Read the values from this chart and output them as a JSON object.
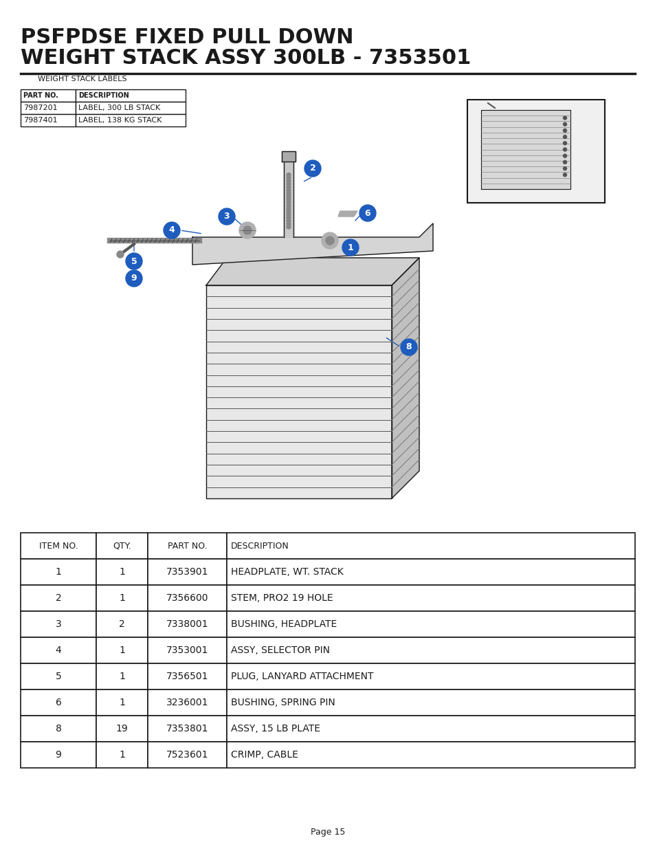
{
  "title_line1": "PSFPDSE FIXED PULL DOWN",
  "title_line2": "WEIGHT STACK ASSY 300LB - 7353501",
  "bg_color": "#ffffff",
  "title_color": "#1a1a1a",
  "label_table_title": "WEIGHT STACK LABELS",
  "label_table_headers": [
    "PART NO.",
    "DESCRIPTION"
  ],
  "label_table_rows": [
    [
      "7987201",
      "LABEL, 300 LB STACK"
    ],
    [
      "7987401",
      "LABEL, 138 KG STACK"
    ]
  ],
  "main_table_headers": [
    "ITEM NO.",
    "QTY.",
    "PART NO.",
    "DESCRIPTION"
  ],
  "main_table_rows": [
    [
      "1",
      "1",
      "7353901",
      "HEADPLATE, WT. STACK"
    ],
    [
      "2",
      "1",
      "7356600",
      "STEM, PRO2 19 HOLE"
    ],
    [
      "3",
      "2",
      "7338001",
      "BUSHING, HEADPLATE"
    ],
    [
      "4",
      "1",
      "7353001",
      "ASSY, SELECTOR PIN"
    ],
    [
      "5",
      "1",
      "7356501",
      "PLUG, LANYARD ATTACHMENT"
    ],
    [
      "6",
      "1",
      "3236001",
      "BUSHING, SPRING PIN"
    ],
    [
      "8",
      "19",
      "7353801",
      "ASSY, 15 LB PLATE"
    ],
    [
      "9",
      "1",
      "7523601",
      "CRIMP, CABLE"
    ]
  ],
  "page_number": "Page 15",
  "callout_color": "#1e5cbe",
  "line_color": "#2a2a2a"
}
